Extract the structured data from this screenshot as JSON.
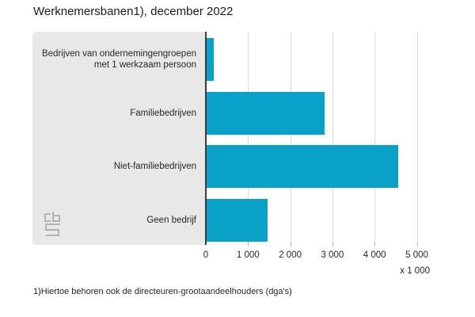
{
  "page": {
    "title": "Werknemersbanen1), december 2022",
    "footnote": "1)Hiertoe behoren ook de directeuren-grootaandeelhouders (dga's)"
  },
  "chart_data": {
    "type": "bar",
    "orientation": "horizontal",
    "title": "Werknemersbanen1), december 2022",
    "categories": [
      "Bedrijven van ondernemingengroepen met 1 werkzaam persoon",
      "Familiebedrijven",
      "Niet-familiebedrijven",
      "Geen bedrijf"
    ],
    "values": [
      160,
      2800,
      4540,
      1450
    ],
    "unit_label": "x 1 000",
    "xlabel": "x 1 000",
    "ylabel": "",
    "xlim": [
      0,
      5000
    ],
    "x_tick_values": [
      0,
      1000,
      2000,
      3000,
      4000,
      5000
    ],
    "x_tick_labels": [
      "0",
      "1 000",
      "2 000",
      "3 000",
      "4 000",
      "5 000"
    ],
    "grid": true,
    "legend": false,
    "colors": {
      "bar": "#0aa1c9",
      "panel": "#e8e8e8",
      "gridline": "#d9d9d9",
      "axis": "#3c3c3c",
      "tick": "#b5b5b5",
      "text": "#262626"
    }
  },
  "icons": {
    "logo": "cbs-logo"
  }
}
